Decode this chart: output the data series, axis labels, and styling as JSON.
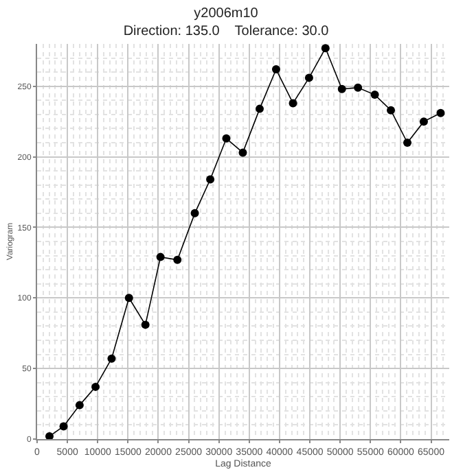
{
  "chart_data": {
    "type": "line",
    "title": "y2006m10",
    "subtitle": "Direction: 135.0    Tolerance: 30.0",
    "xlabel": "Lag Distance",
    "ylabel": "Variogram",
    "x": [
      2040,
      4370,
      7010,
      9640,
      12290,
      15160,
      17870,
      20360,
      23150,
      26020,
      28570,
      31220,
      33940,
      36720,
      39430,
      42220,
      44870,
      47580,
      50290,
      52940,
      55720,
      58370,
      61090,
      63800,
      66580
    ],
    "series": [
      {
        "color": "#000000",
        "values": [
          2,
          9,
          24,
          37,
          57,
          100,
          81,
          129,
          127,
          160,
          184,
          213,
          203,
          234,
          262,
          238,
          256,
          277,
          248,
          249,
          244,
          233,
          210,
          225,
          231
        ]
      }
    ],
    "xlim": [
      0,
      68000
    ],
    "xticks": [
      0,
      5000,
      10000,
      15000,
      20000,
      25000,
      30000,
      35000,
      40000,
      45000,
      50000,
      55000,
      60000,
      65000
    ],
    "ylim": [
      0,
      280
    ],
    "yticks": [
      0,
      50,
      100,
      150,
      200,
      250
    ],
    "grid": true,
    "marker": "circle",
    "line_style": "solid",
    "legend": false
  }
}
